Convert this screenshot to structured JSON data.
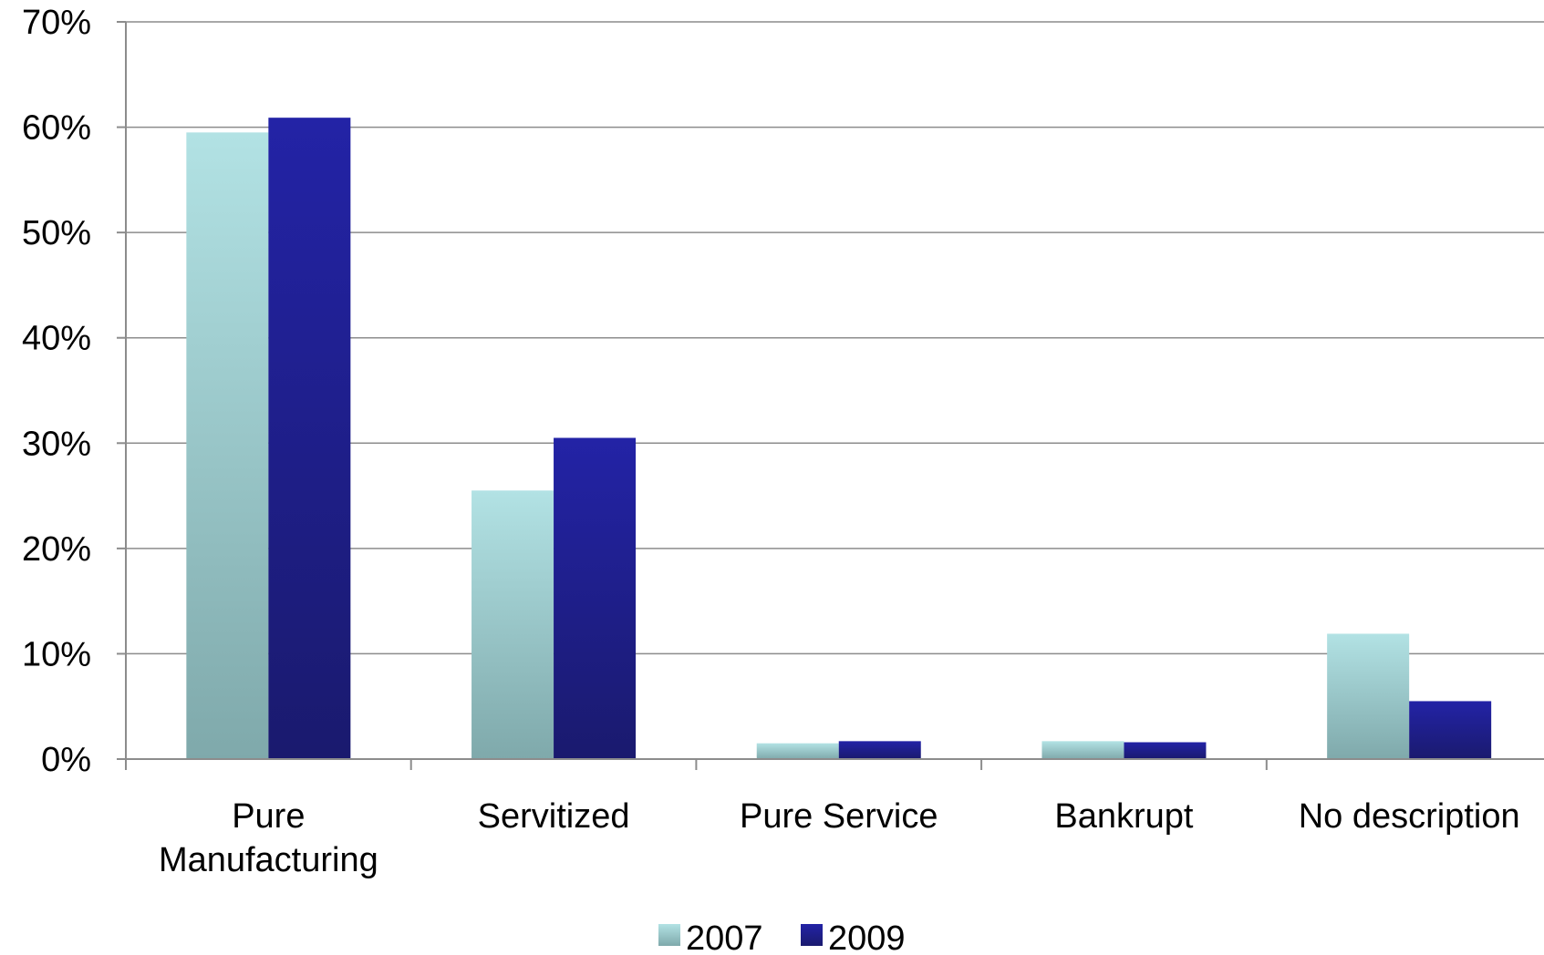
{
  "chart_data": {
    "type": "bar",
    "categories": [
      "Pure Manufacturing",
      "Servitized",
      "Pure Service",
      "Bankrupt",
      "No description"
    ],
    "category_lines": [
      [
        "Pure",
        "Manufacturing"
      ],
      [
        "Servitized"
      ],
      [
        "Pure Service"
      ],
      [
        "Bankrupt"
      ],
      [
        "No description"
      ]
    ],
    "series": [
      {
        "name": "2007",
        "values": [
          59.5,
          25.5,
          1.5,
          1.7,
          11.9
        ]
      },
      {
        "name": "2009",
        "values": [
          60.9,
          30.5,
          1.7,
          1.6,
          5.5
        ]
      }
    ],
    "title": "",
    "xlabel": "",
    "ylabel": "",
    "ylim": [
      0,
      70
    ],
    "yticks": [
      0,
      10,
      20,
      30,
      40,
      50,
      60,
      70
    ],
    "ytick_labels": [
      "0%",
      "10%",
      "20%",
      "30%",
      "40%",
      "50%",
      "60%",
      "70%"
    ],
    "grid": true,
    "legend": "bottom",
    "colors": {
      "2007_top": "#b2e2e4",
      "2007_bottom": "#7fa9ab",
      "2009_top": "#2323a6",
      "2009_bottom": "#1a1a6e",
      "grid": "#8c8c8c",
      "axis": "#8c8c8c"
    }
  }
}
